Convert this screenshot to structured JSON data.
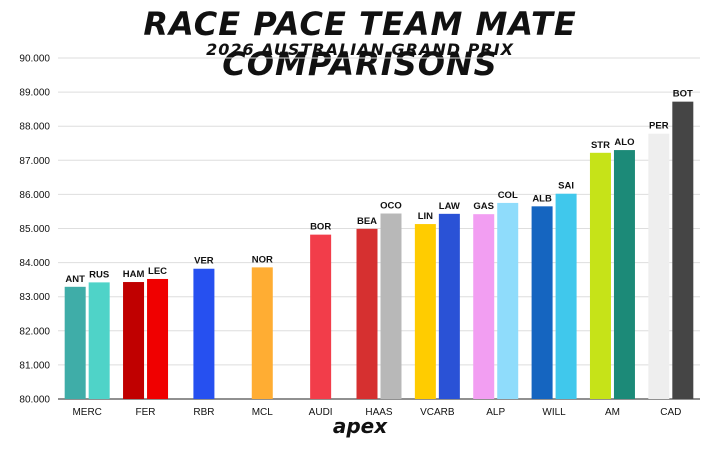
{
  "chart_data": {
    "type": "bar",
    "title": "RACE PACE TEAM MATE COMPARISONS",
    "subtitle": "2026 AUSTRALIAN GRAND PRIX",
    "ylim": [
      80.0,
      90.0
    ],
    "yticks": [
      "80.000",
      "81.000",
      "82.000",
      "83.000",
      "84.000",
      "85.000",
      "86.000",
      "87.000",
      "88.000",
      "89.000",
      "90.000"
    ],
    "grid": true,
    "teams": [
      {
        "name": "MERC",
        "drivers": [
          {
            "code": "ANT",
            "value": 83.29,
            "color": "#3fada8"
          },
          {
            "code": "RUS",
            "value": 83.42,
            "color": "#4fd3c8"
          }
        ]
      },
      {
        "name": "FER",
        "drivers": [
          {
            "code": "HAM",
            "value": 83.43,
            "color": "#c00000"
          },
          {
            "code": "LEC",
            "value": 83.52,
            "color": "#f00000"
          }
        ]
      },
      {
        "name": "RBR",
        "drivers": [
          {
            "code": "VER",
            "value": 83.82,
            "color": "#2650f0"
          }
        ]
      },
      {
        "name": "MCL",
        "drivers": [
          {
            "code": "NOR",
            "value": 83.86,
            "color": "#ffad33"
          }
        ]
      },
      {
        "name": "AUDI",
        "drivers": [
          {
            "code": "BOR",
            "value": 84.82,
            "color": "#f23d4a"
          }
        ]
      },
      {
        "name": "HAAS",
        "drivers": [
          {
            "code": "BEA",
            "value": 84.99,
            "color": "#d63030"
          },
          {
            "code": "OCO",
            "value": 85.44,
            "color": "#b8b8b8"
          }
        ]
      },
      {
        "name": "VCARB",
        "drivers": [
          {
            "code": "LIN",
            "value": 85.13,
            "color": "#ffcc00"
          },
          {
            "code": "LAW",
            "value": 85.43,
            "color": "#2a52d6"
          }
        ]
      },
      {
        "name": "ALP",
        "drivers": [
          {
            "code": "GAS",
            "value": 85.42,
            "color": "#f29ef2"
          },
          {
            "code": "COL",
            "value": 85.75,
            "color": "#8fdcfb"
          }
        ]
      },
      {
        "name": "WILL",
        "drivers": [
          {
            "code": "ALB",
            "value": 85.65,
            "color": "#1565c0"
          },
          {
            "code": "SAI",
            "value": 86.02,
            "color": "#40c8ec"
          }
        ]
      },
      {
        "name": "AM",
        "drivers": [
          {
            "code": "STR",
            "value": 87.22,
            "color": "#c6e318"
          },
          {
            "code": "ALO",
            "value": 87.3,
            "color": "#1c8a78"
          }
        ]
      },
      {
        "name": "CAD",
        "drivers": [
          {
            "code": "PER",
            "value": 87.78,
            "color": "#eeeeee"
          },
          {
            "code": "BOT",
            "value": 88.72,
            "color": "#454545"
          }
        ]
      }
    ]
  },
  "brand": {
    "logo": "apex"
  }
}
